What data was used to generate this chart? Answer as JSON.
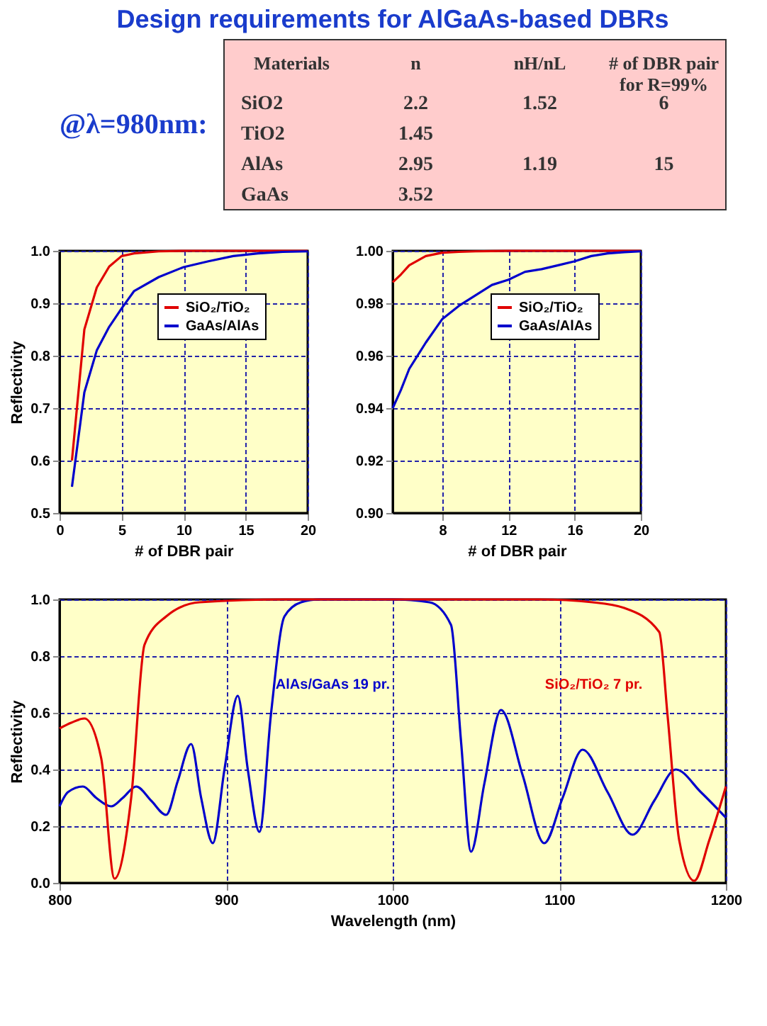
{
  "chart_data": [
    {
      "type": "other",
      "title": "Design requirements for AlGaAs-based DBRs",
      "annotations": [
        "@λ=980nm:"
      ],
      "categories": [
        "Materials",
        "n",
        "nH/nL",
        "# of DBR pair\nfor R=99%"
      ],
      "y_categories": [
        "SiO2",
        "TiO2",
        "AlAs",
        "GaAs"
      ],
      "cell_labels": [
        [
          "2.2",
          "1.52",
          "6"
        ],
        [
          "1.45",
          null,
          null
        ],
        [
          "2.95",
          "1.19",
          "15"
        ],
        [
          "3.52",
          null,
          null
        ]
      ]
    },
    {
      "type": "line",
      "xlabel": "# of DBR pair",
      "ylabel": "Reflectivity",
      "x": [
        1,
        2,
        3,
        4,
        5,
        6,
        8,
        10,
        12,
        14,
        16,
        18,
        20
      ],
      "series": [
        {
          "name": "SiO₂/TiO₂",
          "color": "#e00000",
          "values": [
            0.6,
            0.85,
            0.93,
            0.97,
            0.99,
            0.995,
            0.999,
            1.0,
            1.0,
            1.0,
            1.0,
            1.0,
            1.0
          ]
        },
        {
          "name": "GaAs/AlAs",
          "color": "#0000cc",
          "values": [
            0.55,
            0.73,
            0.81,
            0.855,
            0.89,
            0.923,
            0.95,
            0.969,
            0.98,
            0.99,
            0.995,
            0.998,
            0.999
          ]
        }
      ],
      "xlim": [
        0,
        20
      ],
      "xticks": [
        0,
        5,
        10,
        15,
        20
      ],
      "ylim": [
        0.5,
        1.0
      ],
      "yticks": [
        0.5,
        0.6,
        0.7,
        0.8,
        0.9,
        {
          "value": 1.0,
          "label": "1.0"
        }
      ],
      "grid": true,
      "legend": "top right",
      "marker": "none",
      "line_style": "solid"
    },
    {
      "type": "line",
      "xlabel": "# of DBR pair",
      "x": [
        5,
        5.5,
        6,
        7,
        8,
        9,
        10,
        11,
        12,
        13,
        14,
        15,
        16,
        17,
        18,
        19,
        20
      ],
      "series": [
        {
          "name": "SiO₂/TiO₂",
          "color": "#e00000",
          "values": [
            0.988,
            0.991,
            0.9945,
            0.998,
            0.9993,
            0.9996,
            0.9998,
            0.9999,
            1.0,
            1.0,
            1.0,
            1.0,
            1.0,
            1.0,
            1.0,
            1.0,
            1.0
          ]
        },
        {
          "name": "GaAs/AlAs",
          "color": "#0000cc",
          "values": [
            0.94,
            0.947,
            0.955,
            0.965,
            0.974,
            0.979,
            0.983,
            0.987,
            0.989,
            0.992,
            0.993,
            0.9945,
            0.996,
            0.998,
            0.999,
            0.9995,
            0.9998
          ]
        }
      ],
      "xlim": [
        5,
        20
      ],
      "xticks": [
        8,
        12,
        16,
        20
      ],
      "ylim": [
        0.9,
        1.0
      ],
      "yticks": [
        {
          "value": 0.9,
          "label": "0.90"
        },
        {
          "value": 0.92,
          "label": "0.92"
        },
        {
          "value": 0.94,
          "label": "0.94"
        },
        {
          "value": 0.96,
          "label": "0.96"
        },
        {
          "value": 0.98,
          "label": "0.98"
        },
        {
          "value": 1.0,
          "label": "1.00"
        }
      ],
      "grid": true,
      "legend": "top right",
      "marker": "none",
      "line_style": "solid"
    },
    {
      "type": "line",
      "xlabel": "Wavelength (nm)",
      "ylabel": "Reflectivity",
      "series": [
        {
          "name": "AlAs/GaAs 19 pr.",
          "color": "#0000cc",
          "x": [
            800,
            805,
            814,
            822,
            831,
            838,
            846,
            855,
            864,
            871,
            879,
            885,
            892,
            899,
            907,
            913,
            920,
            927,
            935,
            945,
            956,
            1000,
            1022,
            1035,
            1041,
            1047,
            1055,
            1065,
            1078,
            1091,
            1102,
            1114,
            1129,
            1144,
            1157,
            1170,
            1185,
            1200
          ],
          "values": [
            0.27,
            0.32,
            0.34,
            0.3,
            0.27,
            0.3,
            0.34,
            0.29,
            0.24,
            0.36,
            0.49,
            0.3,
            0.14,
            0.4,
            0.66,
            0.4,
            0.18,
            0.6,
            0.94,
            0.99,
            1.0,
            1.0,
            0.99,
            0.91,
            0.5,
            0.11,
            0.35,
            0.61,
            0.38,
            0.14,
            0.3,
            0.47,
            0.32,
            0.17,
            0.29,
            0.4,
            0.32,
            0.23
          ]
        },
        {
          "name": "SiO₂/TiO₂ 7 pr.",
          "color": "#e00000",
          "x": [
            800,
            807,
            815,
            825,
            833,
            843,
            851,
            864,
            884,
            935,
            1088,
            1120,
            1139,
            1160,
            1165,
            1172,
            1181,
            1190,
            1200
          ],
          "values": [
            0.545,
            0.565,
            0.58,
            0.44,
            0.015,
            0.3,
            0.84,
            0.94,
            0.99,
            1.0,
            1.0,
            0.99,
            0.97,
            0.885,
            0.59,
            0.15,
            0.007,
            0.15,
            0.34
          ]
        }
      ],
      "xlim": [
        800,
        1200
      ],
      "xticks": [
        800,
        900,
        1000,
        1100,
        1200
      ],
      "ylim": [
        0,
        1.0
      ],
      "yticks": [
        {
          "value": 0,
          "label": "0.0"
        },
        0.2,
        0.4,
        0.6,
        0.8,
        {
          "value": 1.0,
          "label": "1.0"
        }
      ],
      "grid": true,
      "marker": "none",
      "line_style": "solid"
    }
  ]
}
